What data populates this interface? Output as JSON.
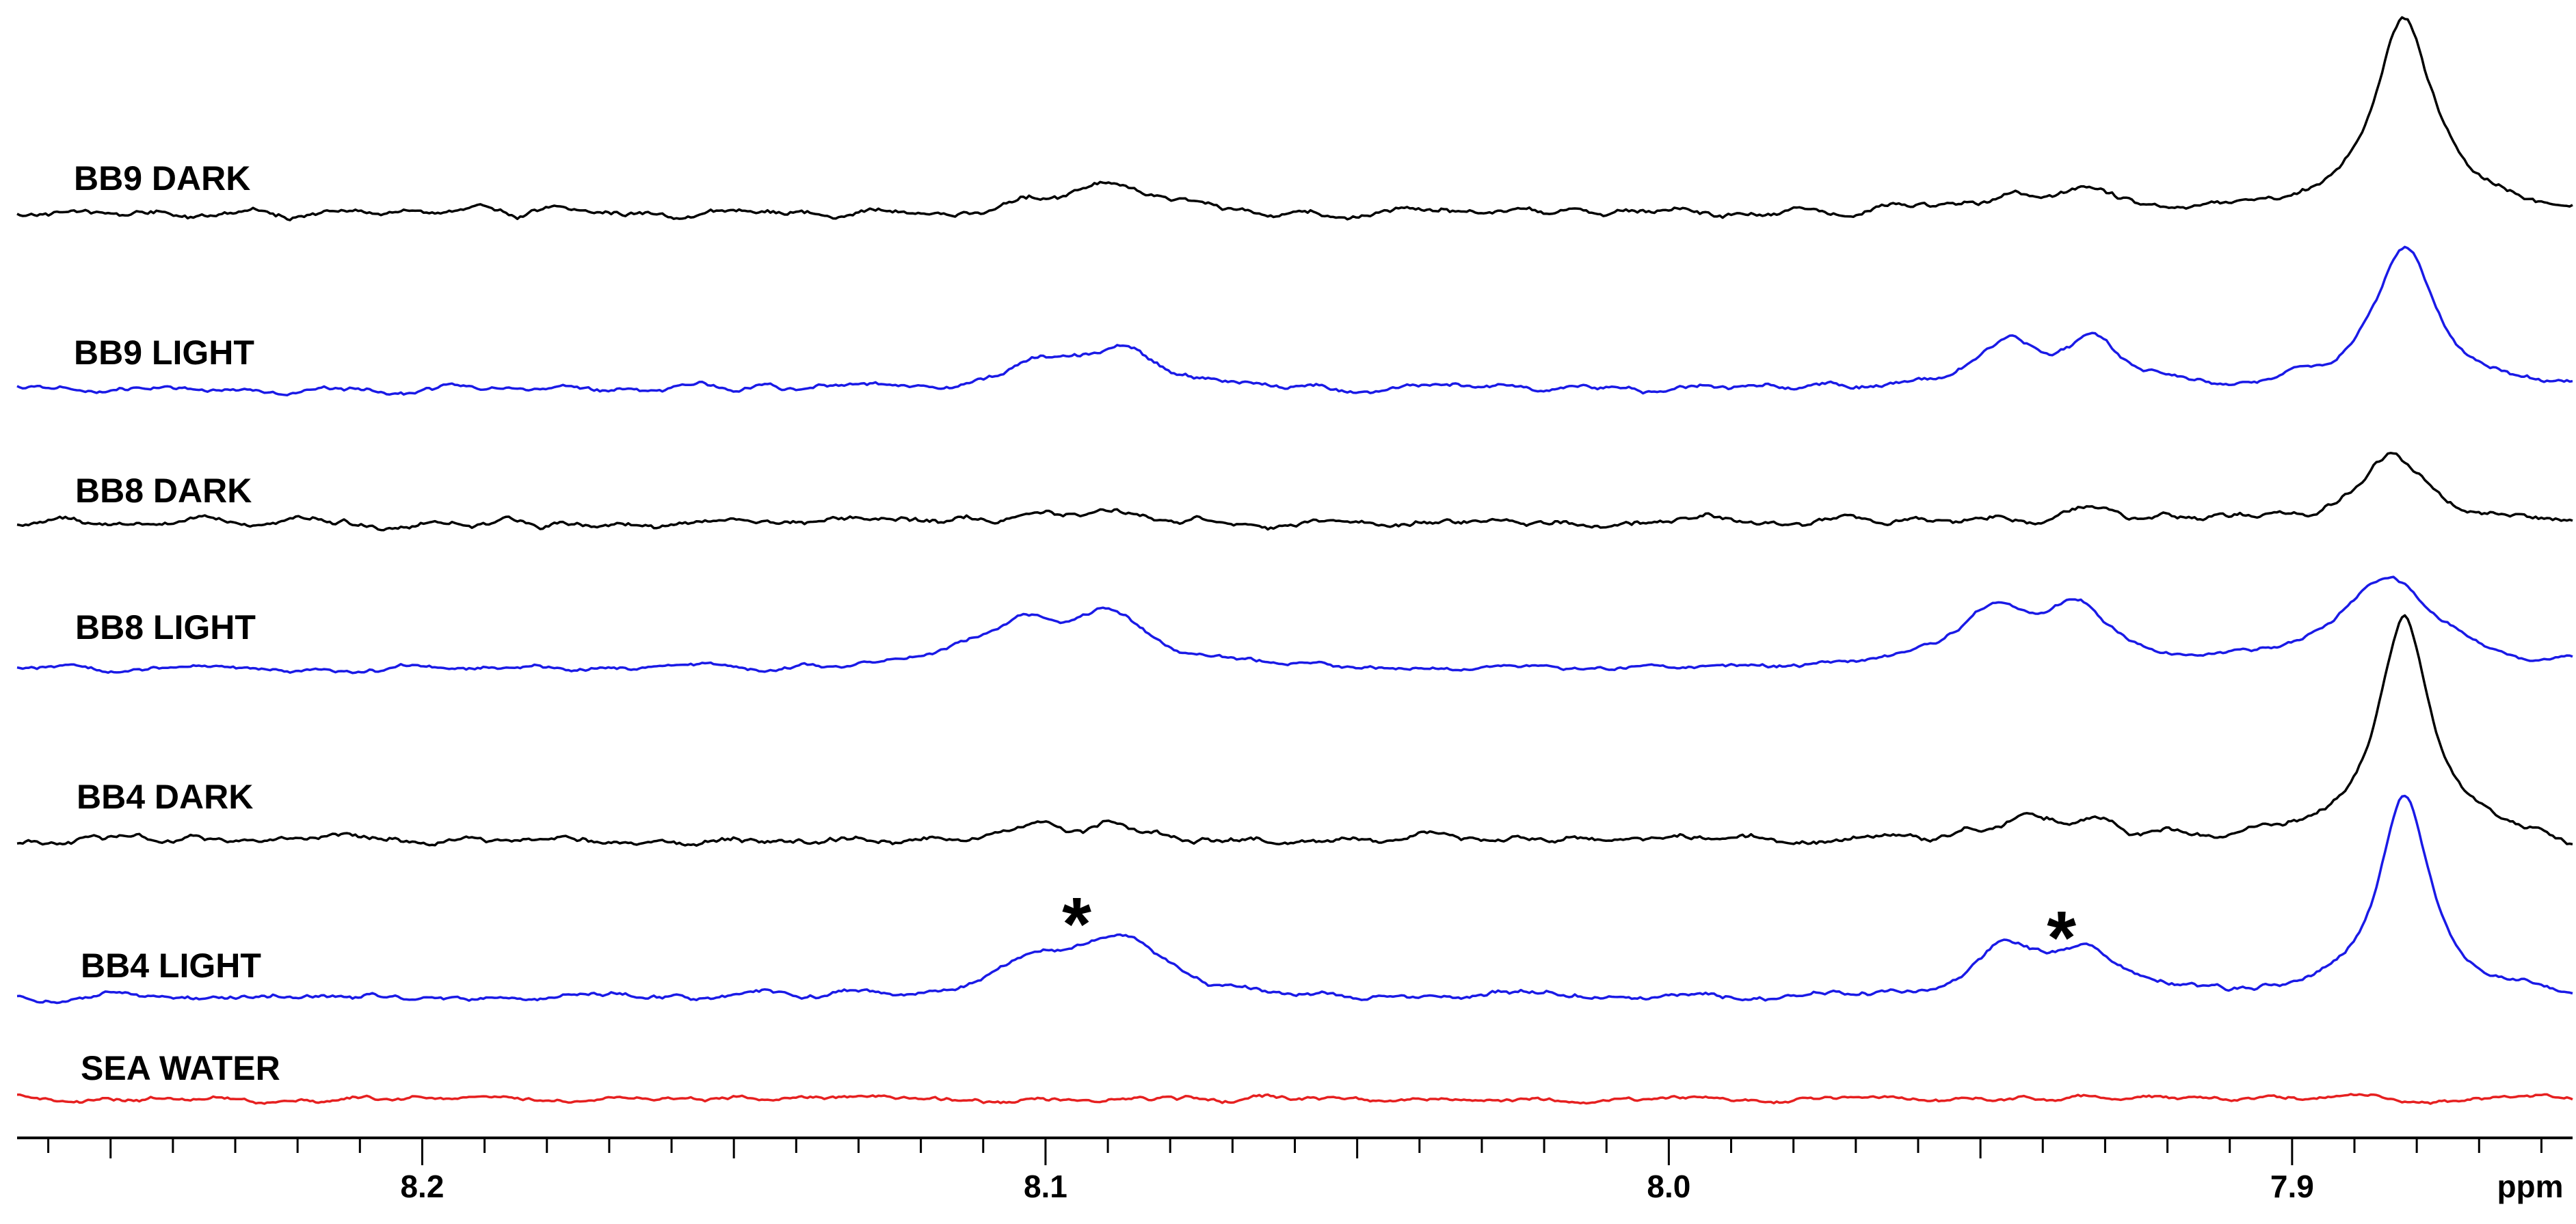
{
  "chart_data": {
    "type": "line",
    "title": "",
    "xlabel": "ppm",
    "ylabel": "",
    "xlim": [
      8.265,
      7.855
    ],
    "x_reversed": true,
    "grid": false,
    "x_ticks": [
      {
        "value": 8.2,
        "label": "8.2"
      },
      {
        "value": 8.1,
        "label": "8.1"
      },
      {
        "value": 8.0,
        "label": "8.0"
      },
      {
        "value": 7.9,
        "label": "7.9"
      }
    ],
    "minor_tick_step": 0.01,
    "annotations": [
      {
        "text": "*",
        "x": 8.095
      },
      {
        "text": "*",
        "x": 7.937
      }
    ],
    "series": [
      {
        "name": "BB9 DARK",
        "color": "#000000",
        "offset": 0.0,
        "noise": 0.012,
        "peaks": [
          [
            8.1,
            0.03,
            0.007
          ],
          [
            8.088,
            0.07,
            0.006
          ],
          [
            7.945,
            0.05,
            0.005
          ],
          [
            7.932,
            0.055,
            0.005
          ],
          [
            7.882,
            0.5,
            0.006
          ]
        ]
      },
      {
        "name": "BB9 LIGHT",
        "color": "#1a1ae6",
        "offset": 0.0,
        "noise": 0.01,
        "peaks": [
          [
            8.1,
            0.06,
            0.008
          ],
          [
            8.087,
            0.1,
            0.006
          ],
          [
            7.946,
            0.12,
            0.006
          ],
          [
            7.932,
            0.12,
            0.005
          ],
          [
            7.882,
            0.36,
            0.006
          ]
        ]
      },
      {
        "name": "BB8 DARK",
        "color": "#000000",
        "offset": 0.0,
        "noise": 0.012,
        "peaks": [
          [
            8.093,
            0.02,
            0.007
          ],
          [
            7.945,
            0.02,
            0.006
          ],
          [
            7.932,
            0.025,
            0.006
          ],
          [
            7.884,
            0.18,
            0.006
          ]
        ]
      },
      {
        "name": "BB8 LIGHT",
        "color": "#1a1ae6",
        "offset": 0.0,
        "noise": 0.008,
        "peaks": [
          [
            8.104,
            0.12,
            0.009
          ],
          [
            8.089,
            0.12,
            0.007
          ],
          [
            7.948,
            0.15,
            0.008
          ],
          [
            7.934,
            0.13,
            0.006
          ],
          [
            7.885,
            0.24,
            0.009
          ]
        ]
      },
      {
        "name": "BB4 DARK",
        "color": "#000000",
        "offset": 0.0,
        "noise": 0.012,
        "peaks": [
          [
            8.101,
            0.04,
            0.005
          ],
          [
            8.089,
            0.04,
            0.005
          ],
          [
            7.945,
            0.05,
            0.006
          ],
          [
            7.932,
            0.05,
            0.006
          ],
          [
            7.882,
            0.58,
            0.005
          ]
        ]
      },
      {
        "name": "BB4 LIGHT",
        "color": "#1a1ae6",
        "offset": 0.0,
        "noise": 0.01,
        "peaks": [
          [
            8.101,
            0.08,
            0.006
          ],
          [
            8.088,
            0.16,
            0.008
          ],
          [
            7.946,
            0.13,
            0.006
          ],
          [
            7.933,
            0.11,
            0.006
          ],
          [
            7.882,
            0.52,
            0.005
          ]
        ]
      },
      {
        "name": "SEA WATER",
        "color": "#e62020",
        "offset": 0.0,
        "noise": 0.008,
        "peaks": []
      }
    ]
  }
}
